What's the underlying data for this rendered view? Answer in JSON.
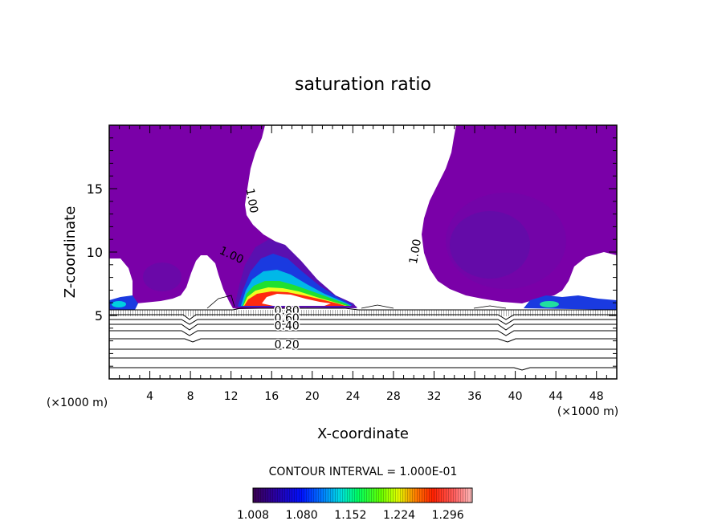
{
  "chart_data": {
    "type": "contour",
    "title": "saturation ratio",
    "xlabel": "X-coordinate",
    "ylabel": "Z-coordinate",
    "x_unit": "(×1000 m)",
    "z_unit": "(×1000 m)",
    "xlim": [
      0,
      50
    ],
    "ylim": [
      0,
      20
    ],
    "x_ticks": [
      4,
      8,
      12,
      16,
      20,
      24,
      28,
      32,
      36,
      40,
      44,
      48
    ],
    "y_ticks": [
      5,
      10,
      15
    ],
    "contour_interval_text": "CONTOUR INTERVAL = 1.000E-01",
    "colorbar_labels": [
      "1.008",
      "1.080",
      "1.152",
      "1.224",
      "1.296"
    ],
    "colorbar_range": [
      1.008,
      1.332
    ],
    "contour_labels": [
      {
        "text": "1.00",
        "x": 13.7,
        "z": 14.0
      },
      {
        "text": "1.00",
        "x": 11.9,
        "z": 9.5
      },
      {
        "text": "1.00",
        "x": 30.5,
        "z": 10.0
      },
      {
        "text": "0.80",
        "x": 17.5,
        "z": 5.1
      },
      {
        "text": "0.60",
        "x": 17.5,
        "z": 4.5
      },
      {
        "text": "0.40",
        "x": 17.5,
        "z": 3.9
      },
      {
        "text": "0.20",
        "x": 17.5,
        "z": 2.4
      }
    ],
    "colors": {
      "purple": "#7a00a8",
      "deep_purple": "#5a0fa8",
      "blue": "#1033d8",
      "green": "#00e040",
      "red": "#ff2020",
      "white": "#ffffff"
    },
    "grid": false,
    "legend": "colorbar-bottom"
  }
}
